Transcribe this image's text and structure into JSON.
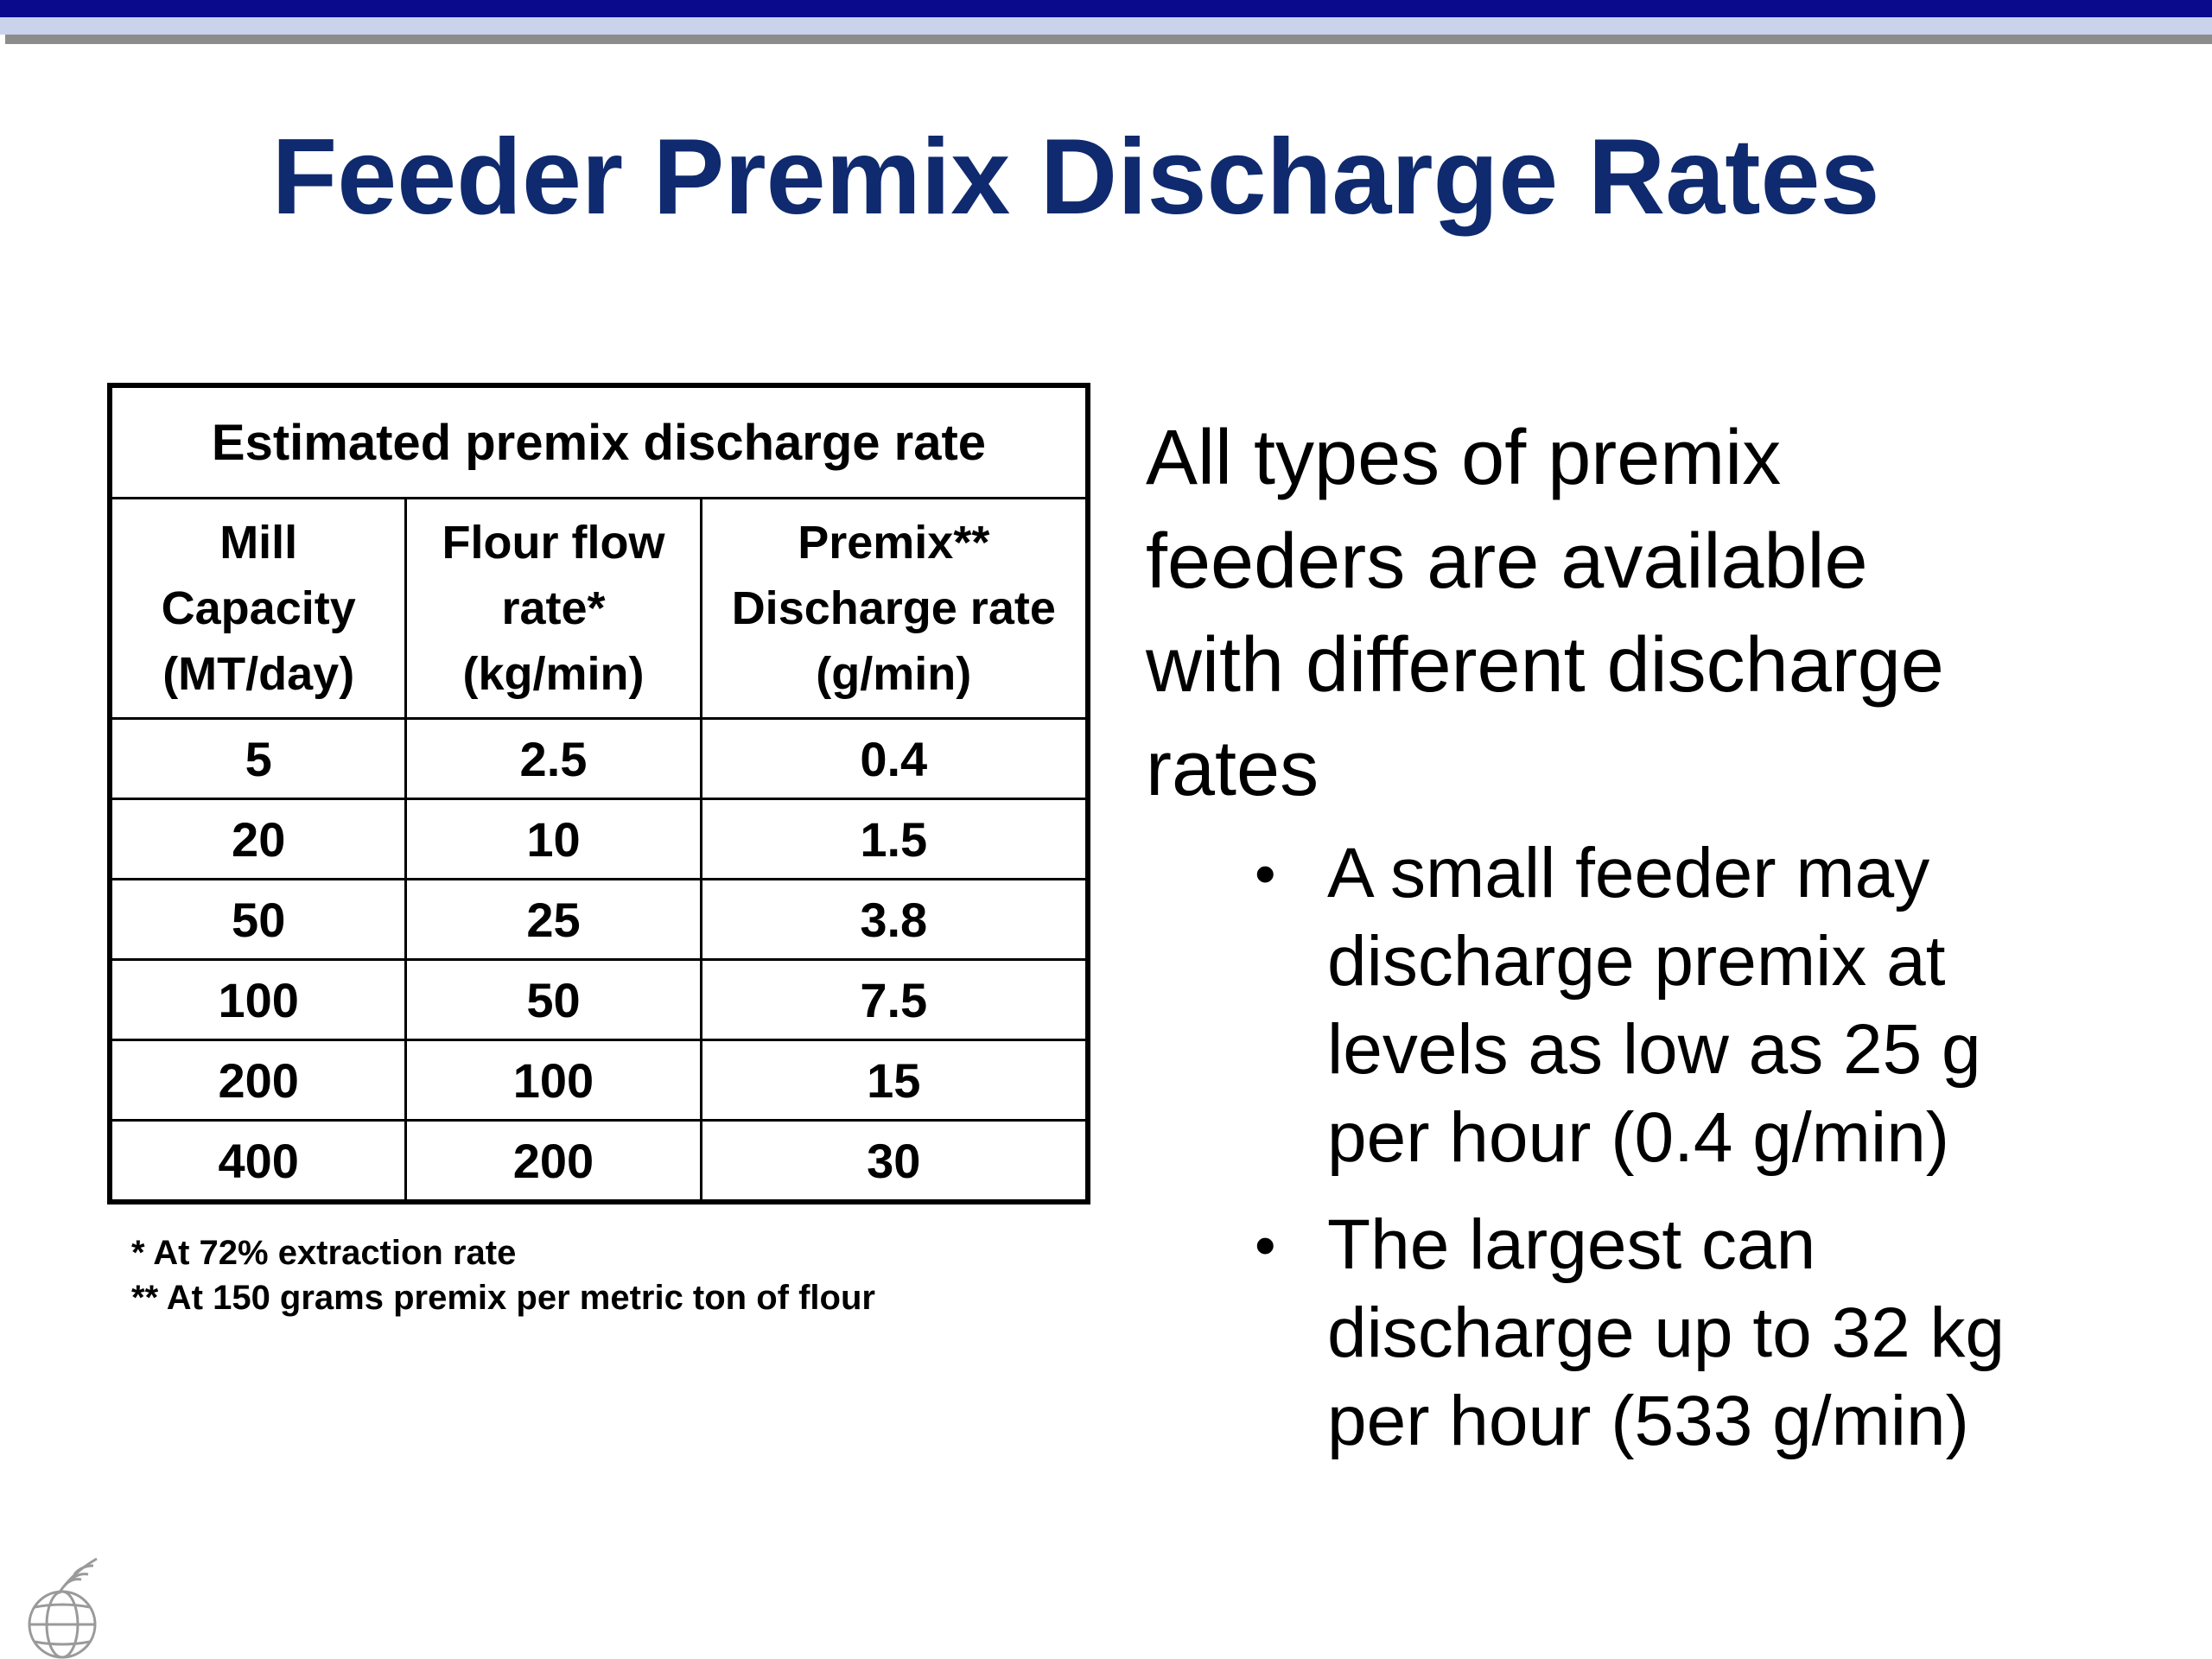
{
  "colors": {
    "top_band": "#0a0a8c",
    "top_band_light": "#c9d3ec",
    "top_band_gray": "#8c8c8c",
    "title": "#0f2a6e",
    "text": "#000000",
    "logo": "#9a9a9a"
  },
  "slide": {
    "title": "Feeder Premix Discharge Rates"
  },
  "table": {
    "caption": "Estimated premix discharge rate",
    "headers": [
      [
        "Mill",
        "Capacity",
        "(MT/day)"
      ],
      [
        "Flour flow",
        "rate*",
        "(kg/min)"
      ],
      [
        "Premix**",
        "Discharge rate",
        "(g/min)"
      ]
    ],
    "rows": [
      [
        "5",
        "2.5",
        "0.4"
      ],
      [
        "20",
        "10",
        "1.5"
      ],
      [
        "50",
        "25",
        "3.8"
      ],
      [
        "100",
        "50",
        "7.5"
      ],
      [
        "200",
        "100",
        "15"
      ],
      [
        "400",
        "200",
        "30"
      ]
    ],
    "footnotes": [
      "* At 72% extraction rate",
      "** At 150 grams premix per metric ton of flour"
    ]
  },
  "content": {
    "main_text_lines": [
      "All types of premix",
      "feeders are available",
      "with different discharge",
      "rates"
    ],
    "bullet_glyph": "•",
    "bullets": [
      [
        "A small feeder may",
        "discharge premix at",
        "levels as low as 25 g",
        "per hour (0.4 g/min)"
      ],
      [
        "The largest can",
        "discharge up to 32 kg",
        "per hour (533 g/min)"
      ]
    ]
  },
  "logo": {
    "icon": "globe-wheat-logo-icon"
  }
}
